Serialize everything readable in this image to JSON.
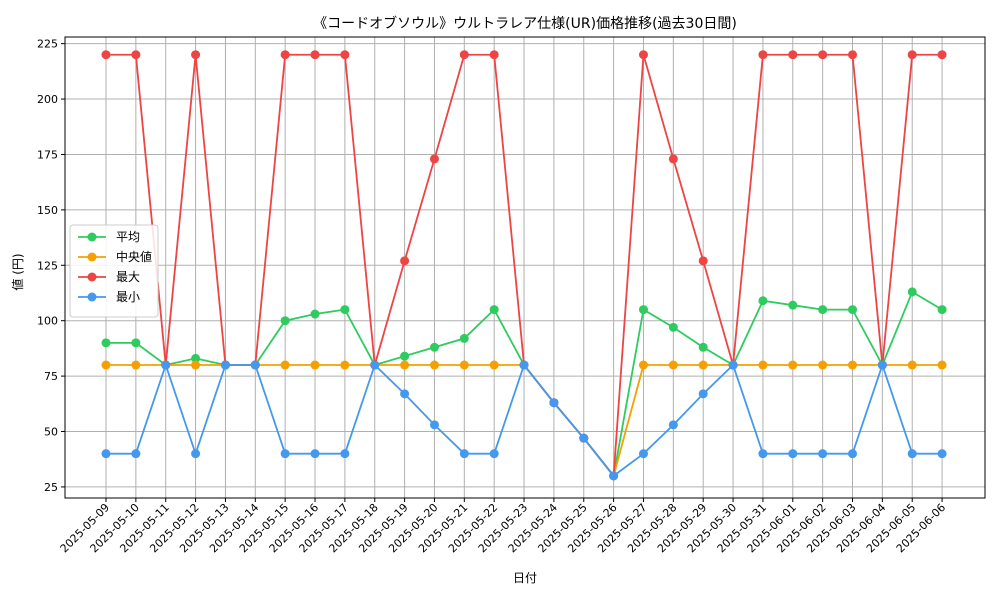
{
  "chart_data": {
    "type": "line",
    "title": "《コードオブソウル》ウルトラレア仕様(UR)価格推移(過去30日間)",
    "xlabel": "日付",
    "ylabel": "値 (円)",
    "ylim": [
      20,
      228
    ],
    "yticks": [
      25,
      50,
      75,
      100,
      125,
      150,
      175,
      200,
      225
    ],
    "grid": true,
    "legend_position": "center-left",
    "categories": [
      "2025-05-09",
      "2025-05-10",
      "2025-05-11",
      "2025-05-12",
      "2025-05-13",
      "2025-05-14",
      "2025-05-15",
      "2025-05-16",
      "2025-05-17",
      "2025-05-18",
      "2025-05-19",
      "2025-05-20",
      "2025-05-21",
      "2025-05-22",
      "2025-05-23",
      "2025-05-24",
      "2025-05-25",
      "2025-05-26",
      "2025-05-27",
      "2025-05-28",
      "2025-05-29",
      "2025-05-30",
      "2025-05-31",
      "2025-06-01",
      "2025-06-02",
      "2025-06-03",
      "2025-06-04",
      "2025-06-05",
      "2025-06-06"
    ],
    "series": [
      {
        "name": "平均",
        "color": "#2ecc5f",
        "values": [
          90,
          90,
          80,
          83,
          80,
          80,
          100,
          103,
          105,
          80,
          84,
          88,
          92,
          105,
          80,
          63,
          47,
          30,
          105,
          97,
          88,
          80,
          109,
          107,
          105,
          105,
          80,
          113,
          105
        ]
      },
      {
        "name": "中央値",
        "color": "#f5a000",
        "values": [
          80,
          80,
          80,
          80,
          80,
          80,
          80,
          80,
          80,
          80,
          80,
          80,
          80,
          80,
          80,
          63,
          47,
          30,
          80,
          80,
          80,
          80,
          80,
          80,
          80,
          80,
          80,
          80,
          80
        ]
      },
      {
        "name": "最大",
        "color": "#ee4444",
        "values": [
          220,
          220,
          80,
          220,
          80,
          80,
          220,
          220,
          220,
          80,
          127,
          173,
          220,
          220,
          80,
          63,
          47,
          30,
          220,
          173,
          127,
          80,
          220,
          220,
          220,
          220,
          80,
          220,
          220
        ]
      },
      {
        "name": "最小",
        "color": "#4499ee",
        "values": [
          40,
          40,
          80,
          40,
          80,
          80,
          40,
          40,
          40,
          80,
          67,
          53,
          40,
          40,
          80,
          63,
          47,
          30,
          40,
          53,
          67,
          80,
          40,
          40,
          40,
          40,
          80,
          40,
          40
        ]
      }
    ]
  }
}
